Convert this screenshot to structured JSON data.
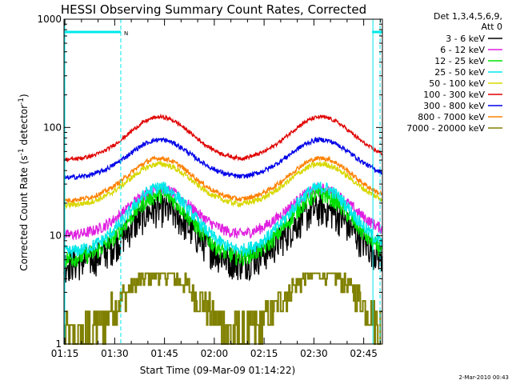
{
  "chart_data": {
    "type": "line",
    "title": "HESSI Observing Summary Count Rates, Corrected",
    "xlabel": "Start Time (09-Mar-09 01:14:22)",
    "ylabel": "Corrected Count Rate (s⁻¹ detector⁻¹)",
    "ylabel_main": "Corrected Count Rate (s",
    "ylabel_sup1": "-1",
    "ylabel_mid": " detector",
    "ylabel_sup2": "-1",
    "ylabel_end": ")",
    "y_scale": "log",
    "ylim": [
      1,
      1000
    ],
    "y_ticks": [
      "1",
      "10",
      "100",
      "1000"
    ],
    "x_range_minutes": [
      1.1,
      97.0
    ],
    "x_ticks": [
      "01:15",
      "01:30",
      "01:45",
      "02:00",
      "02:15",
      "02:30",
      "02:45"
    ],
    "x_tick_minutes": [
      15,
      30,
      45,
      60,
      75,
      90,
      105
    ],
    "legend_header": [
      "Det 1,3,4,5,6,9,",
      "Att 0"
    ],
    "legend_position": "right",
    "footer": "2-Mar-2010 00:43",
    "flag_label": "N",
    "flag_bars_minutes": [
      [
        1.1,
        18.2
      ],
      [
        93.9,
        97.0
      ]
    ],
    "cyan_solid_lines_minutes": [
      1.1,
      93.9
    ],
    "cyan_dashed_lines_minutes": [
      18.2,
      96.3
    ],
    "orbit_model": {
      "peak_minutes": [
        30.0,
        78.5
      ],
      "trough_minutes": [
        1.1,
        54.5,
        97.0
      ]
    },
    "series": [
      {
        "name": "3 - 6 keV",
        "color": "#000000",
        "low": 5.5,
        "high": 18,
        "noise": 0.35
      },
      {
        "name": "6 - 12 keV",
        "color": "#e020e0",
        "low": 10,
        "high": 27,
        "noise": 0.12
      },
      {
        "name": "12 - 25 keV",
        "color": "#00e000",
        "low": 6,
        "high": 24,
        "noise": 0.18
      },
      {
        "name": "25 - 50 keV",
        "color": "#00e8e8",
        "low": 7,
        "high": 28,
        "noise": 0.14
      },
      {
        "name": "50 - 100 keV",
        "color": "#d8d800",
        "low": 19,
        "high": 46,
        "noise": 0.06
      },
      {
        "name": "100 - 300 keV",
        "color": "#e00000",
        "low": 50,
        "high": 125,
        "noise": 0.04
      },
      {
        "name": "300 - 800 keV",
        "color": "#0000e8",
        "low": 34,
        "high": 77,
        "noise": 0.05
      },
      {
        "name": "800 - 7000 keV",
        "color": "#ff8000",
        "low": 21,
        "high": 52,
        "noise": 0.05
      },
      {
        "name": "7000 - 20000 keV",
        "color": "#808000",
        "low": 1,
        "high": 4.5,
        "noise": 0.0
      }
    ]
  }
}
